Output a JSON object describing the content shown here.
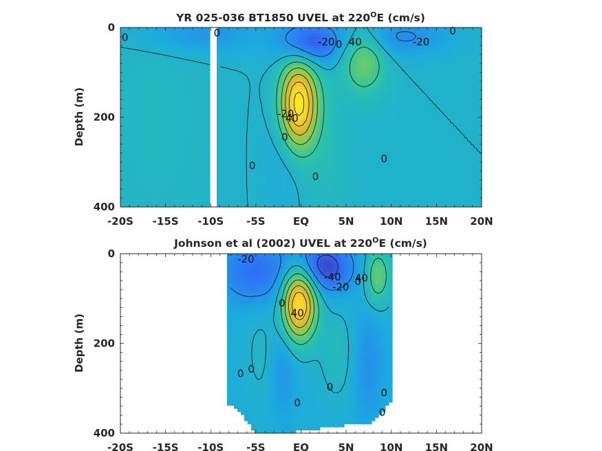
{
  "chart_data": [
    {
      "type": "heatmap",
      "title": "YR 025-036 BT1850 UVEL at 220",
      "title_superscript": "O",
      "title_suffix": "E (cm/s)",
      "ylabel": "Depth (m)",
      "xlabel": "",
      "xlim": [
        -20,
        20
      ],
      "ylim": [
        0,
        400
      ],
      "y_reversed": true,
      "xticks": [
        -20,
        -15,
        -10,
        -5,
        0,
        5,
        10,
        15,
        20
      ],
      "xtick_labels": [
        "-20S",
        "-15S",
        "-10S",
        "-5S",
        "EQ",
        "5N",
        "10N",
        "15N",
        "20N"
      ],
      "yticks": [
        0,
        200,
        400
      ],
      "ytick_labels": [
        "0",
        "200",
        "400"
      ],
      "colormap": [
        "#3e26a8",
        "#2f72f7",
        "#1ca9df",
        "#2cc4a4",
        "#81cc59",
        "#d7ba35",
        "#fcd52f",
        "#f9fb15"
      ],
      "velocity_range": [
        -60,
        120
      ],
      "background_value": 0,
      "data_extent": [
        -20,
        20
      ],
      "gap": [
        -10,
        -9.3
      ],
      "features": [
        {
          "x": -0.3,
          "y": 170,
          "sx": 1.4,
          "sy": 65,
          "u": 110
        },
        {
          "x": 7.0,
          "y": 75,
          "sx": 1.6,
          "sy": 50,
          "u": 38
        },
        {
          "x": 1.0,
          "y": 35,
          "sx": 2.3,
          "sy": 35,
          "u": -45
        },
        {
          "x": 11.0,
          "y": 20,
          "sx": 4.0,
          "sy": 30,
          "u": -22
        },
        {
          "x": -11.0,
          "y": 15,
          "sx": 5.0,
          "sy": 30,
          "u": -18
        },
        {
          "x": 2.5,
          "y": 270,
          "sx": 1.8,
          "sy": 120,
          "u": 8
        },
        {
          "x": -2.0,
          "y": 260,
          "sx": 1.5,
          "sy": 110,
          "u": -8
        },
        {
          "x": -16.0,
          "y": 200,
          "sx": 4.0,
          "sy": 200,
          "u": 5
        }
      ],
      "contour_labels": [
        {
          "x": -19.5,
          "y": 30,
          "text": "0"
        },
        {
          "x": -9.3,
          "y": 20,
          "text": "0"
        },
        {
          "x": 2.8,
          "y": 40,
          "text": "-20"
        },
        {
          "x": 4.2,
          "y": 45,
          "text": "0"
        },
        {
          "x": 6.0,
          "y": 40,
          "text": "40"
        },
        {
          "x": 13.3,
          "y": 40,
          "text": "-20"
        },
        {
          "x": 16.8,
          "y": 15,
          "text": "0"
        },
        {
          "x": -1.7,
          "y": 200,
          "text": "-20"
        },
        {
          "x": -1.0,
          "y": 210,
          "text": "40"
        },
        {
          "x": -1.8,
          "y": 252,
          "text": "0"
        },
        {
          "x": -5.4,
          "y": 316,
          "text": "0"
        },
        {
          "x": 1.6,
          "y": 340,
          "text": "0"
        },
        {
          "x": 9.2,
          "y": 300,
          "text": "0"
        }
      ]
    },
    {
      "type": "heatmap",
      "title": "Johnson et al (2002) UVEL at 220",
      "title_superscript": "O",
      "title_suffix": "E (cm/s)",
      "ylabel": "Depth (m)",
      "xlabel": "",
      "xlim": [
        -20,
        20
      ],
      "ylim": [
        0,
        400
      ],
      "y_reversed": true,
      "xticks": [
        -20,
        -15,
        -10,
        -5,
        0,
        5,
        10,
        15,
        20
      ],
      "xtick_labels": [
        "-20S",
        "-15S",
        "-10S",
        "-5S",
        "EQ",
        "5N",
        "10N",
        "15N",
        "20N"
      ],
      "yticks": [
        0,
        200,
        400
      ],
      "ytick_labels": [
        "0",
        "200",
        "400"
      ],
      "colormap": [
        "#3e26a8",
        "#2f72f7",
        "#1ca9df",
        "#2cc4a4",
        "#81cc59",
        "#d7ba35",
        "#fcd52f",
        "#f9fb15"
      ],
      "velocity_range": [
        -60,
        120
      ],
      "background_value": -5,
      "data_extent": [
        -8,
        10
      ],
      "data_depth_limit": [
        [
          -8,
          335
        ],
        [
          -6.5,
          360
        ],
        [
          -5,
          400
        ],
        [
          -2,
          400
        ],
        [
          8,
          375
        ],
        [
          10,
          330
        ]
      ],
      "gap": null,
      "features": [
        {
          "x": -0.2,
          "y": 110,
          "sx": 1.3,
          "sy": 55,
          "u": 110
        },
        {
          "x": 8.5,
          "y": 50,
          "sx": 1.0,
          "sy": 45,
          "u": 40
        },
        {
          "x": 2.5,
          "y": 30,
          "sx": 2.3,
          "sy": 40,
          "u": -45
        },
        {
          "x": -5.0,
          "y": 40,
          "sx": 3.0,
          "sy": 50,
          "u": -30
        },
        {
          "x": 4.0,
          "y": 220,
          "sx": 1.3,
          "sy": 70,
          "u": 12
        },
        {
          "x": -4.5,
          "y": 220,
          "sx": 1.0,
          "sy": 70,
          "u": 8
        },
        {
          "x": -2.0,
          "y": 260,
          "sx": 1.0,
          "sy": 80,
          "u": -12
        },
        {
          "x": 7.5,
          "y": 250,
          "sx": 1.2,
          "sy": 90,
          "u": -15
        }
      ],
      "contour_labels": [
        {
          "x": -6.1,
          "y": 20,
          "text": "-20"
        },
        {
          "x": -2.1,
          "y": 118,
          "text": "0"
        },
        {
          "x": -0.4,
          "y": 140,
          "text": "40"
        },
        {
          "x": 3.5,
          "y": 60,
          "text": "-40"
        },
        {
          "x": 4.4,
          "y": 82,
          "text": "-20"
        },
        {
          "x": 6.3,
          "y": 70,
          "text": "0"
        },
        {
          "x": 6.7,
          "y": 62,
          "text": "40"
        },
        {
          "x": -6.7,
          "y": 275,
          "text": "0"
        },
        {
          "x": -5.5,
          "y": 265,
          "text": "0"
        },
        {
          "x": -0.4,
          "y": 340,
          "text": "0"
        },
        {
          "x": 3.2,
          "y": 305,
          "text": "0"
        },
        {
          "x": 9.2,
          "y": 318,
          "text": "0"
        },
        {
          "x": 9.0,
          "y": 362,
          "text": "0"
        }
      ]
    }
  ]
}
